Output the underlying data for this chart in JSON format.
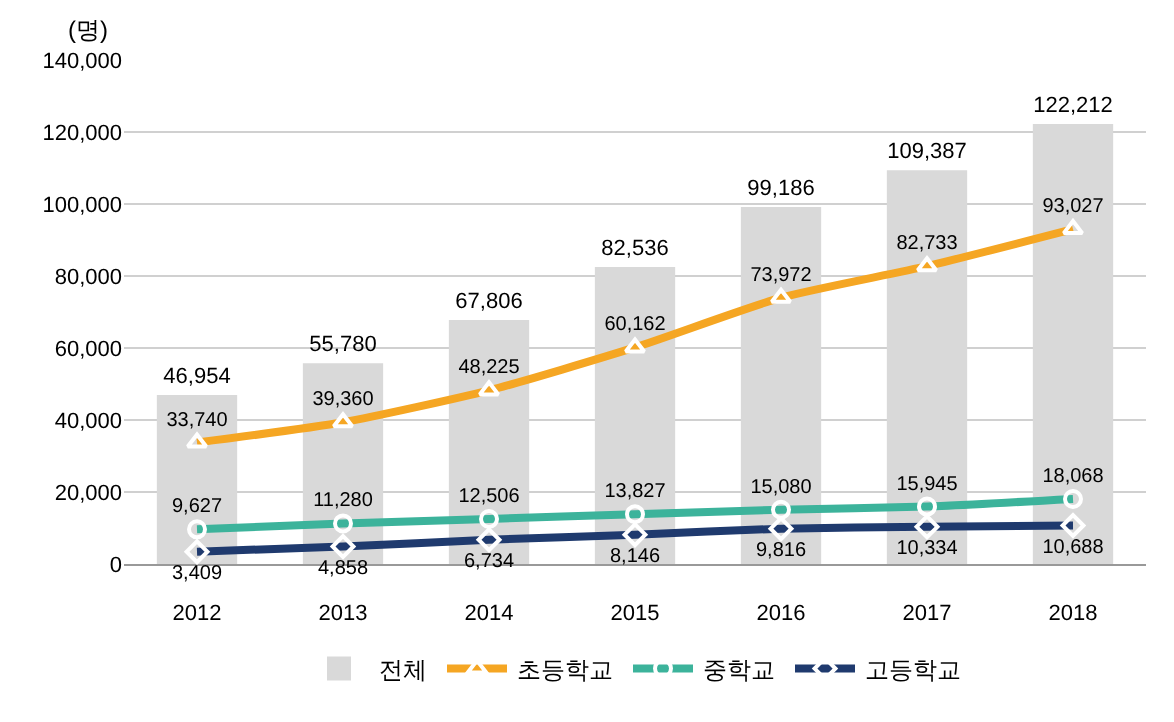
{
  "chart_data": {
    "type": "bar",
    "ylabel": "(명)",
    "categories": [
      "2012",
      "2013",
      "2014",
      "2015",
      "2016",
      "2017",
      "2018"
    ],
    "series": [
      {
        "name": "전체",
        "color": "#d9d9d9",
        "values": [
          46954,
          55780,
          67806,
          82536,
          99186,
          109387,
          122212
        ],
        "value_labels": [
          "46,954",
          "55,780",
          "67,806",
          "82,536",
          "99,186",
          "109,387",
          "122,212"
        ]
      },
      {
        "name": "초등학교",
        "type": "line",
        "color": "#f5a623",
        "marker": "triangle",
        "values": [
          33740,
          39360,
          48225,
          60162,
          73972,
          82733,
          93027
        ],
        "value_labels": [
          "33,740",
          "39,360",
          "48,225",
          "60,162",
          "73,972",
          "82,733",
          "93,027"
        ]
      },
      {
        "name": "중학교",
        "type": "line",
        "color": "#3cb39b",
        "marker": "circle",
        "values": [
          9627,
          11280,
          12506,
          13827,
          15080,
          15945,
          18068
        ],
        "value_labels": [
          "9,627",
          "11,280",
          "12,506",
          "13,827",
          "15,080",
          "15,945",
          "18,068"
        ]
      },
      {
        "name": "고등학교",
        "type": "line",
        "color": "#1f3a6e",
        "marker": "diamond",
        "values": [
          3409,
          4858,
          6734,
          8146,
          9816,
          10334,
          10688
        ],
        "value_labels": [
          "3,409",
          "4,858",
          "6,734",
          "8,146",
          "9,816",
          "10,334",
          "10,688"
        ]
      }
    ],
    "ylim": [
      0,
      140000
    ],
    "yticks": [
      0,
      {
        "value": 20000,
        "label": "20,000"
      },
      {
        "value": 40000,
        "label": "40,000"
      },
      {
        "value": 60000,
        "label": "60,000"
      },
      {
        "value": 80000,
        "label": "80,000"
      },
      {
        "value": 100000,
        "label": "100,000"
      },
      {
        "value": 120000,
        "label": "120,000"
      },
      {
        "value": 140000,
        "label": "140,000"
      }
    ],
    "grid": "y",
    "legend": "bottom",
    "line_style": "solid"
  }
}
